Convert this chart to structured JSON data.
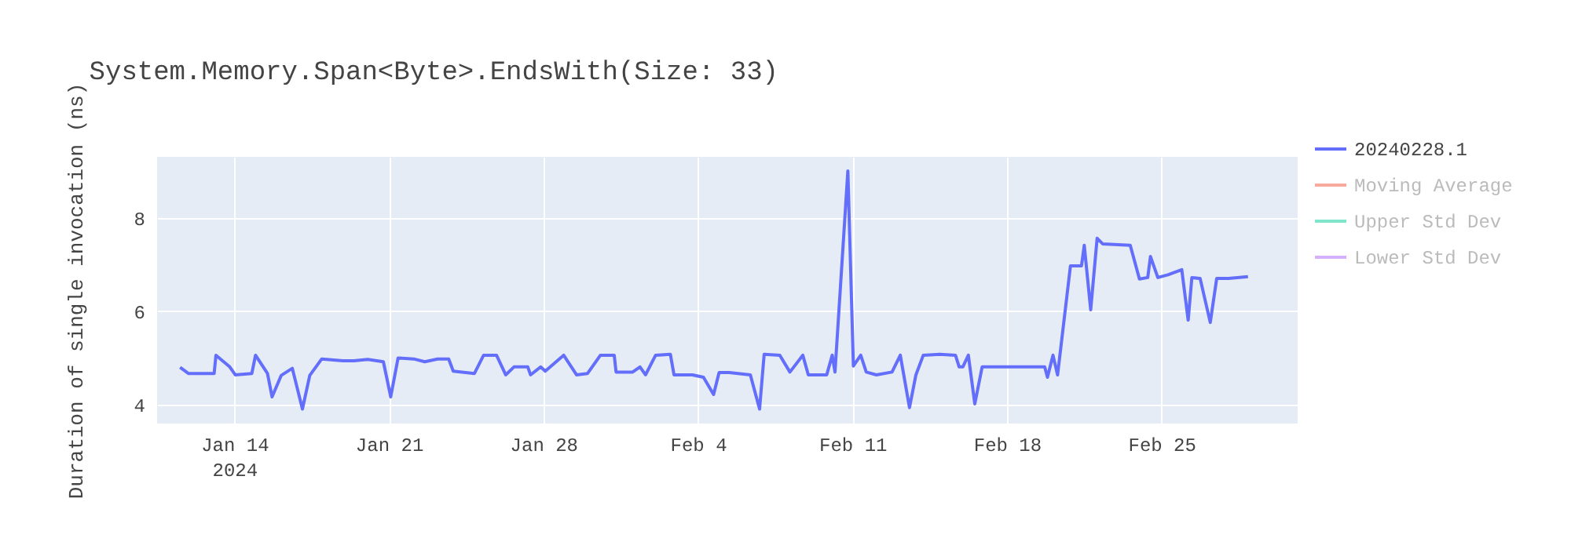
{
  "chart_data": {
    "type": "line",
    "title": "System.Memory.Span<Byte>.EndsWith(Size: 33)",
    "ylabel": "Duration of single invocation (ns)",
    "x": [
      "2024-01-11T13:00",
      "2024-01-11T22:00",
      "2024-01-12T12:00",
      "2024-01-13T02:00",
      "2024-01-13T04:00",
      "2024-01-13T19:00",
      "2024-01-14T01:00",
      "2024-01-14T19:00",
      "2024-01-14T23:00",
      "2024-01-15T12:00",
      "2024-01-15T17:00",
      "2024-01-16T03:00",
      "2024-01-16T15:00",
      "2024-01-17T02:00",
      "2024-01-17T10:00",
      "2024-01-17T23:00",
      "2024-01-18T22:00",
      "2024-01-19T10:00",
      "2024-01-20T01:00",
      "2024-01-20T18:00",
      "2024-01-21T02:00",
      "2024-01-21T10:00",
      "2024-01-22T03:00",
      "2024-01-22T15:00",
      "2024-01-23T05:00",
      "2024-01-23T17:00",
      "2024-01-23T22:00",
      "2024-01-24T21:00",
      "2024-01-25T07:00",
      "2024-01-25T21:00",
      "2024-01-26T07:00",
      "2024-01-26T16:00",
      "2024-01-27T07:00",
      "2024-01-27T10:00",
      "2024-01-27T21:00",
      "2024-01-28T02:00",
      "2024-01-28T22:00",
      "2024-01-29T12:00",
      "2024-01-30T00:00",
      "2024-01-30T14:00",
      "2024-01-31T05:00",
      "2024-01-31T07:00",
      "2024-02-01T01:00",
      "2024-02-01T09:00",
      "2024-02-01T15:00",
      "2024-02-02T02:00",
      "2024-02-02T18:00",
      "2024-02-02T22:00",
      "2024-02-03T18:00",
      "2024-02-04T06:00",
      "2024-02-04T17:00",
      "2024-02-04T23:00",
      "2024-02-05T10:00",
      "2024-02-06T09:00",
      "2024-02-06T19:00",
      "2024-02-07T00:00",
      "2024-02-07T17:00",
      "2024-02-08T04:00",
      "2024-02-08T18:00",
      "2024-02-09T00:00",
      "2024-02-09T20:00",
      "2024-02-10T02:00",
      "2024-02-10T05:00",
      "2024-02-10T19:00",
      "2024-02-11T01:00",
      "2024-02-11T09:00",
      "2024-02-11T15:00",
      "2024-02-12T02:00",
      "2024-02-12T19:00",
      "2024-02-13T04:00",
      "2024-02-13T14:00",
      "2024-02-13T21:00",
      "2024-02-14T05:00",
      "2024-02-14T23:00",
      "2024-02-15T16:00",
      "2024-02-15T20:00",
      "2024-02-16T00:00",
      "2024-02-16T06:00",
      "2024-02-16T13:00",
      "2024-02-16T21:00",
      "2024-02-19T17:00",
      "2024-02-19T20:00",
      "2024-02-20T02:00",
      "2024-02-20T07:00",
      "2024-02-20T21:00",
      "2024-02-21T09:00",
      "2024-02-21T12:00",
      "2024-02-21T19:00",
      "2024-02-22T02:00",
      "2024-02-22T08:00",
      "2024-02-23T14:00",
      "2024-02-24T00:00",
      "2024-02-24T09:00",
      "2024-02-24T12:00",
      "2024-02-24T20:00",
      "2024-02-25T07:00",
      "2024-02-25T22:00",
      "2024-02-26T05:00",
      "2024-02-26T09:00",
      "2024-02-26T18:00",
      "2024-02-27T05:00",
      "2024-02-27T12:00",
      "2024-02-28T01:00",
      "2024-02-28T22:00"
    ],
    "series": [
      {
        "name": "20240228.1",
        "color": "#636efa",
        "values": [
          4.8,
          4.67,
          4.67,
          4.67,
          5.06,
          4.81,
          4.64,
          4.67,
          5.06,
          4.67,
          4.17,
          4.63,
          4.78,
          3.91,
          4.63,
          4.98,
          4.94,
          4.94,
          4.97,
          4.92,
          4.17,
          5.0,
          4.98,
          4.92,
          4.98,
          4.98,
          4.72,
          4.67,
          5.06,
          5.06,
          4.64,
          4.81,
          4.81,
          4.64,
          4.81,
          4.72,
          5.06,
          4.64,
          4.67,
          5.06,
          5.06,
          4.7,
          4.7,
          4.81,
          4.64,
          5.06,
          5.08,
          4.64,
          4.64,
          4.59,
          4.22,
          4.69,
          4.69,
          4.64,
          3.91,
          5.08,
          5.06,
          4.7,
          5.06,
          4.64,
          4.64,
          5.06,
          4.7,
          9.0,
          4.83,
          5.06,
          4.7,
          4.64,
          4.7,
          5.06,
          3.94,
          4.64,
          5.06,
          5.08,
          5.06,
          4.81,
          4.81,
          5.06,
          4.02,
          4.81,
          4.81,
          4.59,
          5.06,
          4.64,
          6.97,
          6.97,
          7.41,
          6.03,
          7.56,
          7.44,
          7.41,
          6.69,
          6.72,
          7.17,
          6.72,
          6.78,
          6.89,
          5.81,
          6.72,
          6.7,
          5.76,
          6.7,
          6.7,
          6.74
        ]
      },
      {
        "name": "Moving Average",
        "color": "#f7aa9d",
        "values": [
          null,
          null,
          null,
          null,
          null,
          null,
          null,
          null,
          null,
          null,
          null,
          null,
          null,
          null,
          null,
          null,
          null,
          null,
          null,
          null,
          null,
          null,
          null,
          null,
          null,
          null,
          null,
          null,
          null,
          null,
          null,
          null,
          null,
          null,
          null,
          null,
          null,
          null,
          null,
          null,
          null,
          null,
          null,
          null,
          null,
          null,
          null,
          null,
          null,
          null,
          null,
          null,
          null,
          null,
          null,
          null,
          null,
          null,
          null,
          null,
          null,
          null,
          null,
          null,
          null,
          null,
          null,
          null,
          null,
          null,
          null,
          null,
          null,
          null,
          null,
          null,
          null,
          null,
          null,
          null,
          null,
          null,
          null,
          null,
          null,
          null,
          null,
          null,
          null,
          null,
          null,
          null,
          null,
          null,
          null,
          null,
          null,
          null,
          null,
          null,
          null,
          null,
          null,
          null
        ]
      },
      {
        "name": "Upper Std Dev",
        "color": "#80e6cb",
        "values": [
          null,
          null,
          null,
          null,
          null,
          null,
          null,
          null,
          null,
          null,
          null,
          null,
          null,
          null,
          null,
          null,
          null,
          null,
          null,
          null,
          null,
          null,
          null,
          null,
          null,
          null,
          null,
          null,
          null,
          null,
          null,
          null,
          null,
          null,
          null,
          null,
          null,
          null,
          null,
          null,
          null,
          null,
          null,
          null,
          null,
          null,
          null,
          null,
          null,
          null,
          null,
          null,
          null,
          null,
          null,
          null,
          null,
          null,
          null,
          null,
          null,
          null,
          null,
          null,
          null,
          null,
          null,
          null,
          null,
          null,
          null,
          null,
          null,
          null,
          null,
          null,
          null,
          null,
          null,
          null,
          null,
          null,
          null,
          null,
          null,
          null,
          null,
          null,
          null,
          null,
          null,
          null,
          null,
          null,
          null,
          null,
          null,
          null,
          null,
          null,
          null,
          null,
          null,
          null
        ]
      },
      {
        "name": "Lower Std Dev",
        "color": "#d5b1fd",
        "values": [
          null,
          null,
          null,
          null,
          null,
          null,
          null,
          null,
          null,
          null,
          null,
          null,
          null,
          null,
          null,
          null,
          null,
          null,
          null,
          null,
          null,
          null,
          null,
          null,
          null,
          null,
          null,
          null,
          null,
          null,
          null,
          null,
          null,
          null,
          null,
          null,
          null,
          null,
          null,
          null,
          null,
          null,
          null,
          null,
          null,
          null,
          null,
          null,
          null,
          null,
          null,
          null,
          null,
          null,
          null,
          null,
          null,
          null,
          null,
          null,
          null,
          null,
          null,
          null,
          null,
          null,
          null,
          null,
          null,
          null,
          null,
          null,
          null,
          null,
          null,
          null,
          null,
          null,
          null,
          null,
          null,
          null,
          null,
          null,
          null,
          null,
          null,
          null,
          null,
          null,
          null,
          null,
          null,
          null,
          null,
          null,
          null,
          null,
          null,
          null,
          null,
          null,
          null,
          null
        ]
      }
    ],
    "xlim": [
      "2024-01-10T12:00",
      "2024-03-02T04:00"
    ],
    "xticks": [
      {
        "value": "2024-01-14T00:00",
        "label": "Jan 14\n2024"
      },
      {
        "value": "2024-01-21T00:00",
        "label": "Jan 21"
      },
      {
        "value": "2024-01-28T00:00",
        "label": "Jan 28"
      },
      {
        "value": "2024-02-04T00:00",
        "label": "Feb 4"
      },
      {
        "value": "2024-02-11T00:00",
        "label": "Feb 11"
      },
      {
        "value": "2024-02-18T00:00",
        "label": "Feb 18"
      },
      {
        "value": "2024-02-25T00:00",
        "label": "Feb 25"
      }
    ],
    "ylim": [
      3.6,
      9.3
    ],
    "yticks": [
      4,
      6,
      8
    ],
    "grid": true,
    "legend": "top right",
    "marker": "none",
    "line_style": "solid"
  }
}
